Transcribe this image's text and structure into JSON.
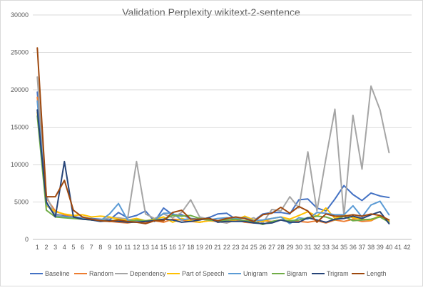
{
  "chart_data": {
    "type": "line",
    "title": "Validation Perplexity wikitext-2-sentence",
    "xlabel": "",
    "ylabel": "",
    "x": [
      1,
      2,
      3,
      4,
      5,
      6,
      7,
      8,
      9,
      10,
      11,
      12,
      13,
      14,
      15,
      16,
      17,
      18,
      19,
      20,
      21,
      22,
      23,
      24,
      25,
      26,
      27,
      28,
      29,
      30,
      31,
      32,
      33,
      34,
      35,
      36,
      37,
      38,
      39,
      40,
      41,
      42
    ],
    "x_tick_labels": [
      "1",
      "2",
      "3",
      "4",
      "5",
      "6",
      "7",
      "8",
      "9",
      "10",
      "11",
      "12",
      "13",
      "14",
      "15",
      "16",
      "17",
      "18",
      "19",
      "20",
      "21",
      "22",
      "23",
      "24",
      "25",
      "26",
      "27",
      "28",
      "29",
      "30",
      "31",
      "32",
      "33",
      "34",
      "35",
      "36",
      "37",
      "38",
      "39",
      "40",
      "41",
      "42"
    ],
    "ylim": [
      0,
      30000
    ],
    "y_ticks": [
      0,
      5000,
      10000,
      15000,
      20000,
      25000,
      30000
    ],
    "y_tick_labels": [
      "0",
      "5000",
      "10000",
      "15000",
      "20000",
      "25000",
      "30000"
    ],
    "grid": "horizontal",
    "legend_position": "bottom",
    "series": [
      {
        "name": "Baseline",
        "color": "#4472C4",
        "values": [
          19700,
          4700,
          3400,
          3100,
          3000,
          2900,
          2800,
          2700,
          2600,
          3600,
          2900,
          3200,
          3800,
          2400,
          4200,
          3300,
          3300,
          2800,
          2600,
          2900,
          3400,
          3500,
          2700,
          2900,
          2500,
          3400,
          3600,
          3600,
          3400,
          5300,
          5400,
          4200,
          3800,
          5400,
          7200,
          6000,
          5200,
          6200,
          5800,
          5600,
          null,
          null
        ]
      },
      {
        "name": "Random",
        "color": "#ED7D31",
        "values": [
          19000,
          5500,
          3800,
          3300,
          3100,
          2800,
          2600,
          2500,
          2400,
          2300,
          2200,
          2400,
          2200,
          2500,
          2300,
          2700,
          2600,
          2400,
          2300,
          2500,
          2400,
          2200,
          2600,
          2300,
          2200,
          2500,
          2400,
          2600,
          2500,
          2400,
          2300,
          2500,
          2200,
          2600,
          2400,
          2700,
          2400,
          2500,
          3100,
          2400,
          null,
          null
        ]
      },
      {
        "name": "Dependency",
        "color": "#A5A5A5",
        "values": [
          21700,
          5800,
          3300,
          3000,
          2900,
          2800,
          2700,
          2600,
          2900,
          2900,
          2700,
          10400,
          3400,
          2800,
          3400,
          2900,
          3600,
          5300,
          3000,
          2700,
          2400,
          2200,
          2700,
          2500,
          2900,
          2200,
          4000,
          3800,
          5700,
          4200,
          11700,
          3800,
          10800,
          17400,
          3100,
          16600,
          9400,
          20500,
          17300,
          11600,
          null,
          null
        ]
      },
      {
        "name": "Part of Speech",
        "color": "#FFC000",
        "values": [
          17000,
          4500,
          3700,
          3400,
          3200,
          3300,
          3000,
          3100,
          3000,
          2700,
          2600,
          2800,
          2500,
          2700,
          3000,
          2300,
          2800,
          2500,
          2300,
          2500,
          2500,
          2400,
          2600,
          3100,
          2600,
          2400,
          2800,
          3000,
          2700,
          3200,
          3700,
          3100,
          4200,
          2800,
          3300,
          2900,
          2700,
          2600,
          3200,
          2400,
          null,
          null
        ]
      },
      {
        "name": "Unigram",
        "color": "#5B9BD5",
        "values": [
          18500,
          4800,
          3100,
          3000,
          3000,
          2900,
          2700,
          2500,
          3400,
          4800,
          2600,
          2500,
          2400,
          2600,
          3500,
          3500,
          2600,
          2800,
          2700,
          2600,
          2800,
          2900,
          2800,
          2900,
          2500,
          2600,
          2800,
          3000,
          2100,
          2900,
          2700,
          3600,
          3500,
          3300,
          3300,
          4500,
          3000,
          4600,
          5100,
          3300,
          null,
          null
        ]
      },
      {
        "name": "Bigram",
        "color": "#70AD47",
        "values": [
          16500,
          3900,
          3000,
          2900,
          2800,
          2700,
          2600,
          2500,
          2500,
          2600,
          2400,
          2600,
          2500,
          2600,
          2700,
          3200,
          3100,
          3200,
          2800,
          2600,
          2500,
          2600,
          2700,
          2500,
          2400,
          2000,
          2400,
          2600,
          2500,
          2600,
          2900,
          3100,
          3000,
          2600,
          3100,
          2500,
          2600,
          2700,
          3000,
          2300,
          null,
          null
        ]
      },
      {
        "name": "Trigram",
        "color": "#264478",
        "values": [
          17300,
          5000,
          3000,
          10400,
          3000,
          2700,
          2600,
          2400,
          2500,
          2400,
          2300,
          2300,
          2400,
          2500,
          2700,
          2600,
          2300,
          2400,
          2600,
          2900,
          2300,
          2400,
          2400,
          2400,
          2200,
          2100,
          2200,
          2600,
          2300,
          2300,
          2900,
          2600,
          2300,
          2700,
          2800,
          3100,
          2800,
          3300,
          3700,
          2100,
          null,
          null
        ]
      },
      {
        "name": "Length",
        "color": "#9E480E",
        "values": [
          25600,
          5700,
          5700,
          7900,
          3900,
          3000,
          2700,
          2500,
          2400,
          2600,
          2400,
          2300,
          2100,
          2500,
          2500,
          3600,
          3900,
          2700,
          2700,
          2800,
          2500,
          2800,
          3000,
          2800,
          2400,
          3300,
          3500,
          4300,
          3500,
          4400,
          3800,
          2300,
          3400,
          3100,
          3100,
          3300,
          3100,
          3400,
          3200,
          2600,
          null,
          null
        ]
      }
    ]
  }
}
